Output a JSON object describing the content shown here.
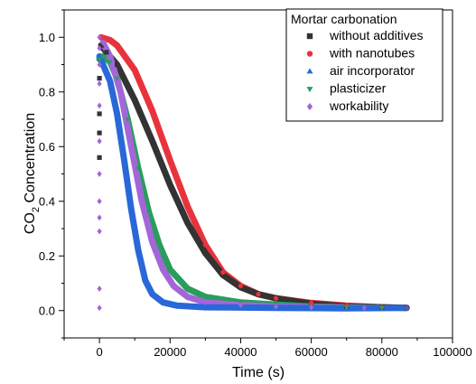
{
  "chart_data": {
    "type": "scatter",
    "xlabel": "Time (s)",
    "ylabel_main": "CO",
    "ylabel_sub": "2",
    "ylabel_rest": " Concentration",
    "xlim": [
      -10000,
      100000
    ],
    "ylim": [
      -0.1,
      1.1
    ],
    "x_ticks": [
      0,
      20000,
      40000,
      60000,
      80000,
      100000
    ],
    "y_ticks": [
      0.0,
      0.2,
      0.4,
      0.6,
      0.8,
      1.0
    ],
    "x_tick_labels": [
      "0",
      "20000",
      "40000",
      "60000",
      "80000",
      "100000"
    ],
    "y_tick_labels": [
      "0.0",
      "0.2",
      "0.4",
      "0.6",
      "0.8",
      "1.0"
    ],
    "legend": {
      "title": "Mortar carbonation",
      "placement": "top-right",
      "entries": [
        {
          "label": "without additives",
          "marker": "square",
          "color": "#333333"
        },
        {
          "label": "with nanotubes",
          "marker": "circle",
          "color": "#e8333c"
        },
        {
          "label": "air incorporator",
          "marker": "triangle-up",
          "color": "#2868d8"
        },
        {
          "label": "plasticizer",
          "marker": "triangle-down",
          "color": "#2a9d5c"
        },
        {
          "label": "workability",
          "marker": "diamond",
          "color": "#a366d8"
        }
      ]
    },
    "series": [
      {
        "name": "without additives",
        "color": "#333333",
        "marker": "square",
        "points": [
          [
            0,
            0.56
          ],
          [
            0,
            0.65
          ],
          [
            0,
            0.72
          ],
          [
            0,
            0.85
          ],
          [
            500,
            0.97
          ],
          [
            2000,
            0.945
          ],
          [
            5000,
            0.9
          ],
          [
            10000,
            0.77
          ],
          [
            15000,
            0.62
          ],
          [
            20000,
            0.46
          ],
          [
            25000,
            0.32
          ],
          [
            30000,
            0.21
          ],
          [
            35000,
            0.13
          ],
          [
            40000,
            0.085
          ],
          [
            45000,
            0.06
          ],
          [
            50000,
            0.045
          ],
          [
            60000,
            0.025
          ],
          [
            70000,
            0.015
          ],
          [
            80000,
            0.012
          ],
          [
            87000,
            0.01
          ]
        ]
      },
      {
        "name": "with nanotubes",
        "color": "#e8333c",
        "marker": "circle",
        "points": [
          [
            500,
            1.0
          ],
          [
            3000,
            0.99
          ],
          [
            5000,
            0.97
          ],
          [
            10000,
            0.88
          ],
          [
            15000,
            0.73
          ],
          [
            20000,
            0.55
          ],
          [
            25000,
            0.38
          ],
          [
            30000,
            0.24
          ],
          [
            35000,
            0.14
          ],
          [
            40000,
            0.09
          ],
          [
            45000,
            0.06
          ],
          [
            50000,
            0.045
          ],
          [
            60000,
            0.028
          ],
          [
            70000,
            0.018
          ],
          [
            80000,
            0.012
          ],
          [
            87000,
            0.01
          ]
        ]
      },
      {
        "name": "air incorporator",
        "color": "#2868d8",
        "marker": "triangle-up",
        "points": [
          [
            0,
            0.93
          ],
          [
            1000,
            0.9
          ],
          [
            3000,
            0.84
          ],
          [
            5000,
            0.72
          ],
          [
            7000,
            0.55
          ],
          [
            9000,
            0.37
          ],
          [
            11000,
            0.22
          ],
          [
            13000,
            0.11
          ],
          [
            15000,
            0.06
          ],
          [
            18000,
            0.03
          ],
          [
            22000,
            0.018
          ],
          [
            30000,
            0.012
          ],
          [
            50000,
            0.01
          ],
          [
            70000,
            0.008
          ],
          [
            87000,
            0.01
          ]
        ]
      },
      {
        "name": "plasticizer",
        "color": "#2a9d5c",
        "marker": "triangle-down",
        "points": [
          [
            0,
            0.92
          ],
          [
            1000,
            0.93
          ],
          [
            3000,
            0.91
          ],
          [
            5000,
            0.85
          ],
          [
            8000,
            0.7
          ],
          [
            11000,
            0.52
          ],
          [
            14000,
            0.36
          ],
          [
            17000,
            0.24
          ],
          [
            20000,
            0.15
          ],
          [
            25000,
            0.08
          ],
          [
            30000,
            0.05
          ],
          [
            40000,
            0.03
          ],
          [
            50000,
            0.022
          ],
          [
            60000,
            0.015
          ],
          [
            70000,
            0.012
          ],
          [
            80000,
            0.01
          ]
        ]
      },
      {
        "name": "workability",
        "color": "#a366d8",
        "marker": "diamond",
        "points": [
          [
            0,
            0.01
          ],
          [
            0,
            0.08
          ],
          [
            0,
            0.29
          ],
          [
            0,
            0.34
          ],
          [
            0,
            0.4
          ],
          [
            0,
            0.5
          ],
          [
            0,
            0.62
          ],
          [
            0,
            0.75
          ],
          [
            0,
            0.83
          ],
          [
            0,
            0.9
          ],
          [
            0,
            0.96
          ],
          [
            0,
            1.0
          ],
          [
            1000,
            0.98
          ],
          [
            3000,
            0.93
          ],
          [
            6000,
            0.8
          ],
          [
            9000,
            0.6
          ],
          [
            12000,
            0.4
          ],
          [
            15000,
            0.25
          ],
          [
            18000,
            0.15
          ],
          [
            21000,
            0.09
          ],
          [
            25000,
            0.05
          ],
          [
            30000,
            0.03
          ],
          [
            40000,
            0.02
          ],
          [
            50000,
            0.015
          ],
          [
            60000,
            0.012
          ],
          [
            75000,
            0.01
          ]
        ]
      }
    ]
  }
}
